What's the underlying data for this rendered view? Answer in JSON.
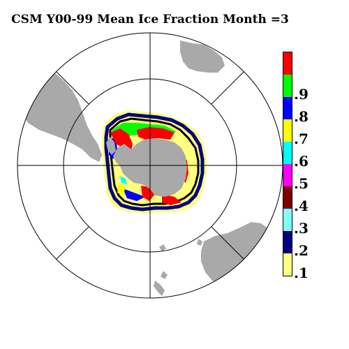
{
  "title": "CSM Y00-99 Mean Ice Fraction Month =3",
  "colors": {
    "land": "#a9a9a9",
    "grid": "#000000",
    "background": "#ffffff"
  },
  "legend": {
    "bins": [
      {
        "label": ".1",
        "color": "#ffff80"
      },
      {
        "label": ".2",
        "color": "#000080"
      },
      {
        "label": ".3",
        "color": "#80ffff"
      },
      {
        "label": ".4",
        "color": "#800000"
      },
      {
        "label": ".5",
        "color": "#ff00ff"
      },
      {
        "label": ".6",
        "color": "#00ffff"
      },
      {
        "label": ".7",
        "color": "#ffff00"
      },
      {
        "label": ".8",
        "color": "#0000ff"
      },
      {
        "label": ".9",
        "color": "#00ff00"
      },
      {
        "label": "",
        "color": "#ff0000"
      }
    ]
  }
}
